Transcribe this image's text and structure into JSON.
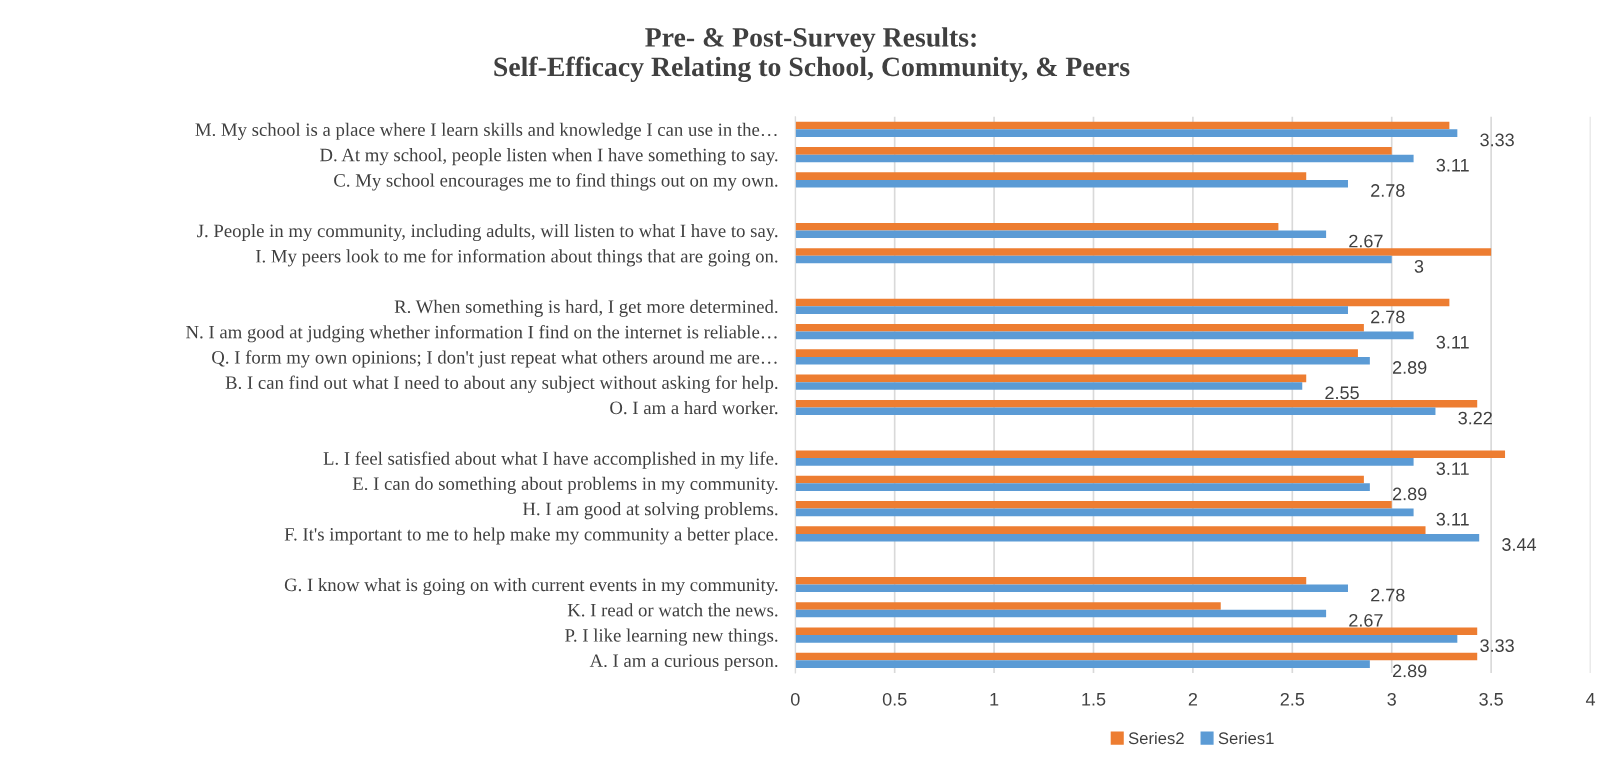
{
  "chart_data": {
    "type": "bar",
    "orientation": "horizontal",
    "title": "Pre- & Post-Survey Results:\nSelf-Efficacy Relating to School, Community, & Peers",
    "categories": [
      "M. My school is a place where I learn skills and knowledge I can use in the…",
      "D. At my school, people listen when I have something to say.",
      "C. My school encourages me to find things out on my own.",
      null,
      "J. People in my community, including adults, will listen to what I have to say.",
      "I. My peers look to me for information about things that are going on.",
      null,
      "R. When something is hard, I get more determined.",
      "N. I am good at judging whether information I find on the internet is reliable…",
      "Q. I form my own opinions; I don't just repeat what others around me are…",
      "B. I can find out what I need to about any subject without asking for help.",
      "O. I am a hard worker.",
      null,
      "L. I feel satisfied about what I have accomplished in my life.",
      "E. I can do something about problems in my community.",
      "H. I am good at solving problems.",
      "F. It's important to me to help make my community a better place.",
      null,
      "G. I know what is going on with current events in my community.",
      "K. I read or watch the news.",
      "P. I like learning new things.",
      "A. I am a curious person."
    ],
    "series": [
      {
        "name": "Series2",
        "color": "#ed7d31",
        "values": [
          3.29,
          3.0,
          2.57,
          null,
          2.43,
          3.5,
          null,
          3.29,
          2.86,
          2.83,
          2.57,
          3.43,
          null,
          3.57,
          2.86,
          3.0,
          3.17,
          null,
          2.57,
          2.14,
          3.43,
          3.43
        ]
      },
      {
        "name": "Series1",
        "color": "#5b9bd5",
        "values": [
          3.33,
          3.11,
          2.78,
          null,
          2.67,
          3.0,
          null,
          2.78,
          3.11,
          2.89,
          2.55,
          3.22,
          null,
          3.11,
          2.89,
          3.11,
          3.44,
          null,
          2.78,
          2.67,
          3.33,
          2.89
        ],
        "value_labels": [
          "3.33",
          "3.11",
          "2.78",
          null,
          "2.67",
          "3",
          null,
          "2.78",
          "3.11",
          "2.89",
          "2.55",
          "3.22",
          null,
          "3.11",
          "2.89",
          "3.11",
          "3.44",
          null,
          "2.78",
          "2.67",
          "3.33",
          "2.89"
        ]
      }
    ],
    "xlim": [
      0,
      4
    ],
    "xticks": [
      0,
      0.5,
      1,
      1.5,
      2,
      2.5,
      3,
      3.5,
      4
    ],
    "grid": "x",
    "legend": "bottom"
  }
}
